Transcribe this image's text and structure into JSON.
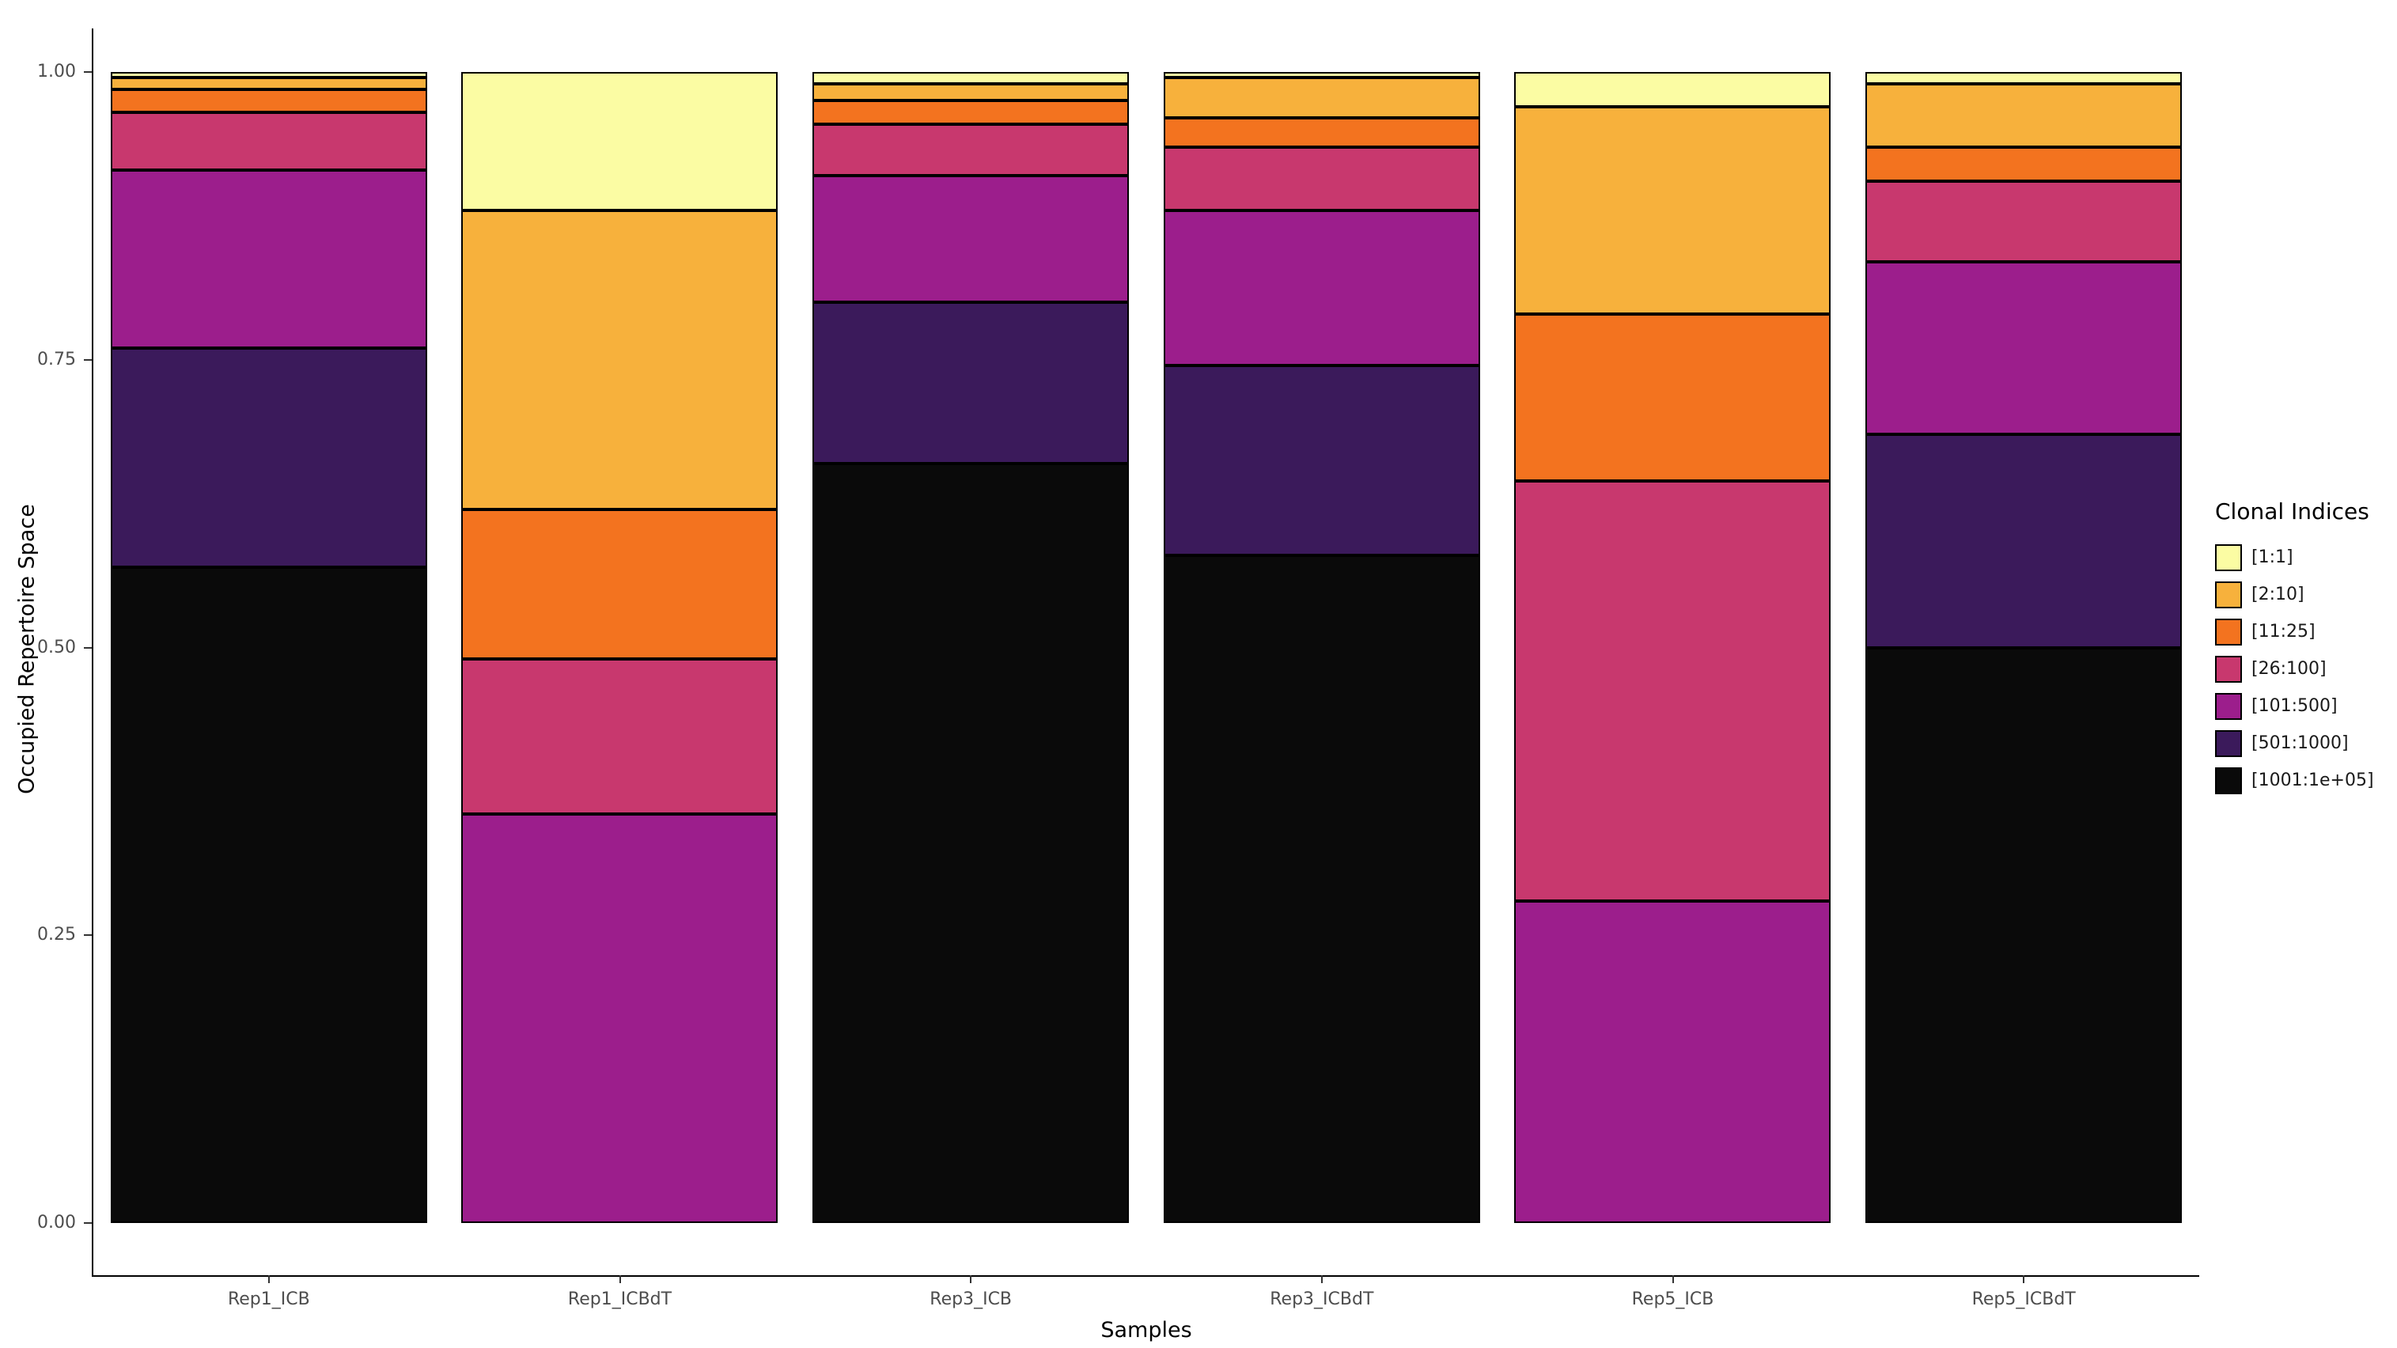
{
  "chart_data": {
    "type": "bar",
    "stacked": true,
    "title": "",
    "xlabel": "Samples",
    "ylabel": "Occupied Repertoire Space",
    "ylim": [
      0,
      1
    ],
    "yticks": [
      0,
      0.25,
      0.5,
      0.75,
      1
    ],
    "ytick_labels": [
      "0.00",
      "0.25",
      "0.50",
      "0.75",
      "1.00"
    ],
    "categories": [
      "Rep1_ICB",
      "Rep1_ICBdT",
      "Rep3_ICB",
      "Rep3_ICBdT",
      "Rep5_ICB",
      "Rep5_ICBdT"
    ],
    "legend_title": "Clonal Indices",
    "legend_position": "right",
    "grid": false,
    "background_color": "#FFFFFF",
    "axis_color": "#000000",
    "tick_text_color": "#4D4D4D",
    "series": [
      {
        "name": "[1:1]",
        "color": "#FBFCA3",
        "values": [
          0.005,
          0.12,
          0.01,
          0.005,
          0.03,
          0.01
        ]
      },
      {
        "name": "[2:10]",
        "color": "#F7B13C",
        "values": [
          0.01,
          0.26,
          0.015,
          0.035,
          0.18,
          0.055
        ]
      },
      {
        "name": "[11:25]",
        "color": "#F3731F",
        "values": [
          0.02,
          0.13,
          0.02,
          0.025,
          0.145,
          0.03
        ]
      },
      {
        "name": "[26:100]",
        "color": "#C8386E",
        "values": [
          0.05,
          0.135,
          0.045,
          0.055,
          0.365,
          0.07
        ]
      },
      {
        "name": "[101:500]",
        "color": "#9C1E8C",
        "values": [
          0.155,
          0.355,
          0.11,
          0.135,
          0.28,
          0.15
        ]
      },
      {
        "name": "[501:1000]",
        "color": "#3B1A5B",
        "values": [
          0.19,
          0.0,
          0.14,
          0.165,
          0.0,
          0.185
        ]
      },
      {
        "name": "[1001:1e+05]",
        "color": "#0A0A0A",
        "values": [
          0.57,
          0.0,
          0.66,
          0.58,
          0.0,
          0.5
        ]
      }
    ]
  }
}
